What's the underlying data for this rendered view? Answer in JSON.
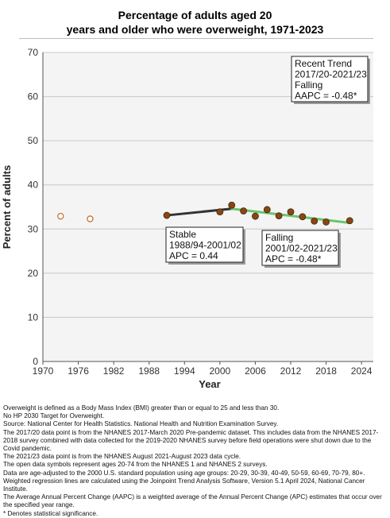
{
  "title_line1": "Percentage of adults aged 20",
  "title_line2": "years and older who were overweight, 1971-2023",
  "chart_data": {
    "type": "scatter",
    "title": "Percentage of adults aged 20 years and older who were overweight, 1971-2023",
    "xlabel": "Year",
    "ylabel": "Percent of adults",
    "xlim": [
      1970,
      2026
    ],
    "ylim": [
      0,
      70
    ],
    "x_ticks": [
      1970,
      1976,
      1982,
      1988,
      1994,
      2000,
      2006,
      2012,
      2018,
      2024
    ],
    "y_ticks": [
      0,
      10,
      20,
      30,
      40,
      50,
      60,
      70
    ],
    "grid": "horizontal",
    "open_points": [
      {
        "x": 1973,
        "y": 32.9
      },
      {
        "x": 1978,
        "y": 32.3
      }
    ],
    "filled_points": [
      {
        "x": 1991,
        "y": 33.1
      },
      {
        "x": 2000,
        "y": 33.9
      },
      {
        "x": 2002,
        "y": 35.4
      },
      {
        "x": 2004,
        "y": 34.1
      },
      {
        "x": 2006,
        "y": 32.9
      },
      {
        "x": 2008,
        "y": 34.4
      },
      {
        "x": 2010,
        "y": 33.0
      },
      {
        "x": 2012,
        "y": 33.9
      },
      {
        "x": 2014,
        "y": 32.8
      },
      {
        "x": 2016,
        "y": 31.8
      },
      {
        "x": 2018,
        "y": 31.6
      },
      {
        "x": 2022,
        "y": 31.9
      }
    ],
    "trend_segments": [
      {
        "name": "Stable",
        "color": "#333333",
        "x": [
          1991,
          2002
        ],
        "y": [
          33.1,
          34.6
        ]
      },
      {
        "name": "Falling",
        "color": "#6cc46c",
        "x": [
          2002,
          2022
        ],
        "y": [
          34.6,
          31.4
        ]
      }
    ],
    "colors": {
      "filled_point": "#8b4513",
      "open_point": "#c26a2a"
    },
    "annotations": [
      {
        "id": "recent",
        "lines": [
          "Recent Trend",
          "2017/20-2021/23",
          "Falling",
          "AAPC = -0.48*"
        ]
      },
      {
        "id": "stable",
        "lines": [
          "Stable",
          "1988/94-2001/02",
          "APC =  0.44"
        ]
      },
      {
        "id": "falling",
        "lines": [
          "Falling",
          "2001/02-2021/23",
          "APC = -0.48*"
        ]
      }
    ]
  },
  "footnotes": [
    "Overweight is defined as a Body Mass Index (BMI) greater than or equal to 25 and less than 30.",
    "No HP 2030 Target for Overweight.",
    "Source: National Center for Health Statistics. National Health and Nutrition Examination Survey.",
    "The 2017/20 data point is from the NHANES 2017-March 2020 Pre-pandemic dataset. This includes data from the NHANES 2017-2018 survey combined with data collected for the 2019-2020 NHANES survey before field operations were shut down due to the Covid pandemic.",
    "The 2021/23 data point is from the NHANES August 2021-August 2023 data cycle.",
    "The open data symbols represent ages 20-74 from the NHANES 1 and NHANES 2 surveys.",
    "Data are age-adjusted to the 2000 U.S. standard population using age groups: 20-29, 30-39, 40-49, 50-59, 60-69, 70-79, 80+.",
    "Weighted regression lines are calculated using the Joinpoint Trend Analysis Software, Version 5.1 April 2024, National Cancer Institute.",
    "The Average Annual Percent Change (AAPC) is a weighted average of the Annual Percent Change (APC) estimates that occur over the specified year range.",
    "* Denotes statistical significance."
  ]
}
